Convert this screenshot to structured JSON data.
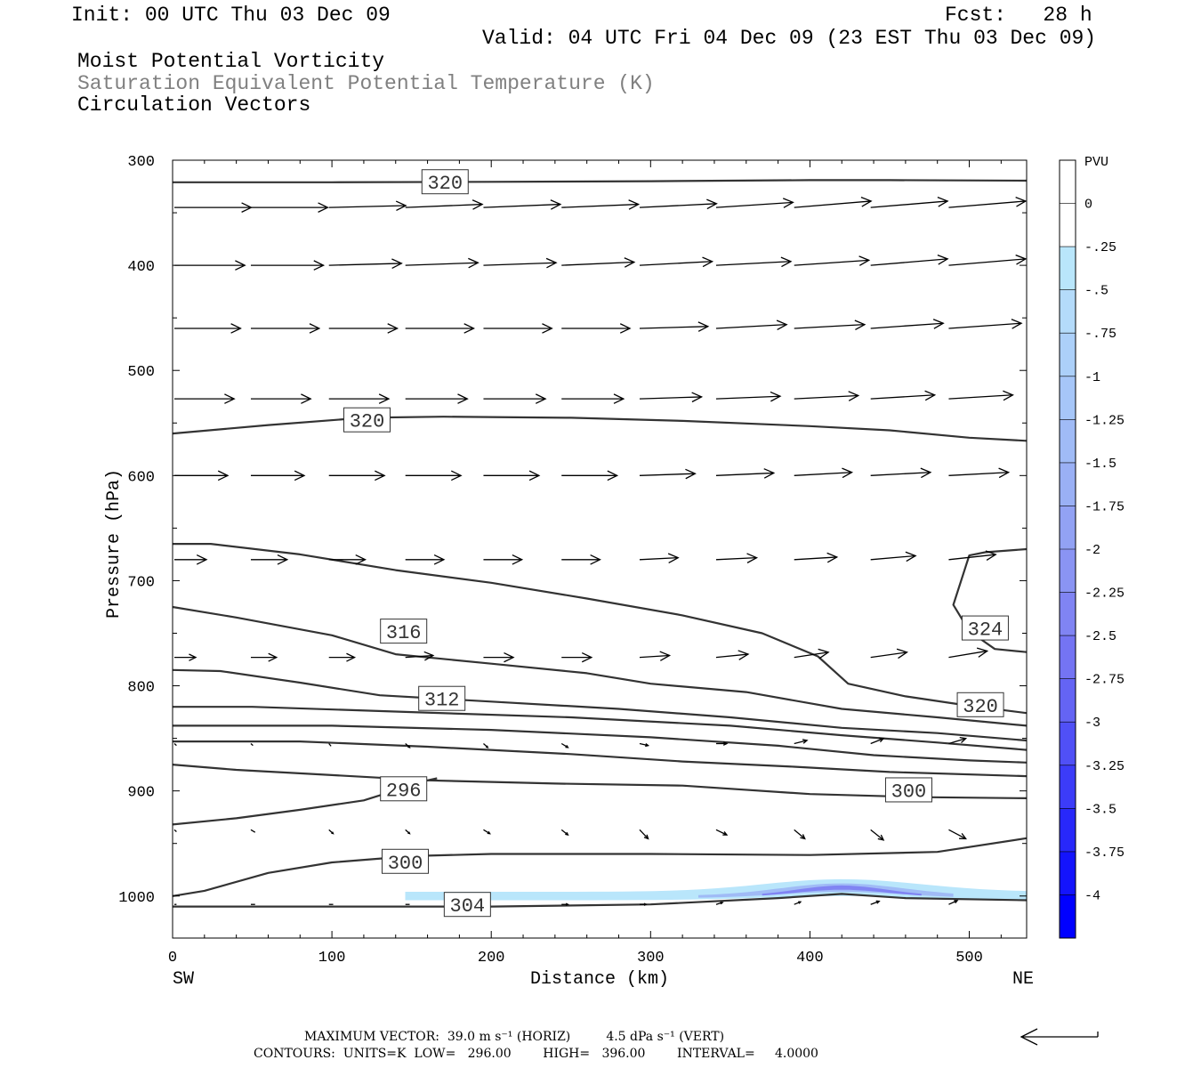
{
  "header": {
    "init": "Init: 00 UTC Thu 03 Dec 09",
    "fcst": "Fcst:   28 h",
    "valid": "Valid: 04 UTC Fri 04 Dec 09 (23 EST Thu 03 Dec 09)",
    "field1": "Moist Potential Vorticity",
    "field2": "Saturation Equivalent Potential Temperature (K)",
    "field3": "Circulation Vectors"
  },
  "footer": {
    "max_vector": "MAXIMUM VECTOR:  39.0 m s⁻¹ (HORIZ)         4.5 dPa s⁻¹ (VERT)",
    "contours": "CONTOURS:  UNITS=K  LOW=   296.00        HIGH=   396.00        INTERVAL=     4.0000"
  },
  "chart_data": {
    "type": "cross-section",
    "xlabel": "Distance (km)",
    "ylabel": "Pressure (hPa)",
    "x_end_labels": [
      "SW",
      "NE"
    ],
    "xlim": [
      0,
      536
    ],
    "ylim": [
      1040,
      300
    ],
    "xticks": [
      0,
      100,
      200,
      300,
      400,
      500
    ],
    "yticks": [
      300,
      400,
      500,
      600,
      700,
      800,
      900,
      1000
    ],
    "colorbar": {
      "unit": "PVU",
      "levels": [
        "0",
        "-.25",
        "-.5",
        "-.75",
        "-1",
        "-1.25",
        "-1.5",
        "-1.75",
        "-2",
        "-2.25",
        "-2.5",
        "-2.75",
        "-3",
        "-3.25",
        "-3.5",
        "-3.75",
        "-4"
      ],
      "colors": [
        "#ffffff",
        "#ffffff",
        "#b9e6fb",
        "#b4dbfa",
        "#acd0f9",
        "#a6c6f8",
        "#a0bbf6",
        "#9ab0f5",
        "#92a2f4",
        "#8a94f3",
        "#8084f3",
        "#7474f3",
        "#6464f4",
        "#5050f6",
        "#3c3cf8",
        "#2828fa",
        "#1414fc",
        "#0000ff"
      ]
    },
    "contours": [
      {
        "label": "320",
        "points": [
          [
            0,
            321
          ],
          [
            100,
            321
          ],
          [
            200,
            320.6
          ],
          [
            300,
            320
          ],
          [
            400,
            319
          ],
          [
            450,
            319
          ],
          [
            536,
            319.5
          ]
        ],
        "label_at": [
          171,
          320.5
        ]
      },
      {
        "label": "320",
        "points": [
          [
            0,
            560
          ],
          [
            60,
            552
          ],
          [
            120,
            545
          ],
          [
            170,
            544
          ],
          [
            250,
            545
          ],
          [
            320,
            548
          ],
          [
            400,
            553
          ],
          [
            450,
            557
          ],
          [
            500,
            564
          ],
          [
            536,
            567
          ]
        ],
        "label_at": [
          122,
          547
        ]
      },
      {
        "label": "320",
        "points": [
          [
            0,
            665
          ],
          [
            24,
            665
          ],
          [
            80,
            675
          ],
          [
            140,
            690
          ],
          [
            200,
            702
          ],
          [
            260,
            717
          ],
          [
            320,
            733
          ],
          [
            370,
            750
          ],
          [
            405,
            772
          ],
          [
            424,
            798
          ],
          [
            460,
            810
          ],
          [
            500,
            819
          ],
          [
            536,
            826
          ]
        ],
        "label_at": [
          507,
          818
        ]
      },
      {
        "label": "316",
        "points": [
          [
            0,
            725
          ],
          [
            40,
            735
          ],
          [
            100,
            752
          ],
          [
            140,
            770
          ],
          [
            200,
            779
          ],
          [
            260,
            788
          ],
          [
            300,
            798
          ],
          [
            360,
            806
          ],
          [
            420,
            822
          ],
          [
            480,
            830
          ],
          [
            536,
            838
          ]
        ],
        "label_at": [
          145,
          748
        ]
      },
      {
        "label": "312",
        "points": [
          [
            0,
            785
          ],
          [
            30,
            786
          ],
          [
            80,
            797
          ],
          [
            130,
            809
          ],
          [
            200,
            815
          ],
          [
            280,
            822
          ],
          [
            350,
            830
          ],
          [
            420,
            840
          ],
          [
            480,
            845
          ],
          [
            536,
            852
          ]
        ],
        "label_at": [
          169,
          812
        ]
      },
      {
        "label": "",
        "points": [
          [
            0,
            820
          ],
          [
            50,
            820
          ],
          [
            150,
            825
          ],
          [
            250,
            830
          ],
          [
            350,
            838
          ],
          [
            420,
            847
          ],
          [
            480,
            854
          ],
          [
            536,
            861
          ]
        ],
        "label_at": null
      },
      {
        "label": "",
        "points": [
          [
            0,
            838
          ],
          [
            100,
            838
          ],
          [
            200,
            842
          ],
          [
            300,
            849
          ],
          [
            380,
            857
          ],
          [
            440,
            866
          ],
          [
            500,
            871
          ],
          [
            536,
            873
          ]
        ],
        "label_at": null
      },
      {
        "label": "",
        "points": [
          [
            0,
            853
          ],
          [
            80,
            853
          ],
          [
            160,
            858
          ],
          [
            250,
            865
          ],
          [
            320,
            872
          ],
          [
            390,
            877
          ],
          [
            450,
            882
          ],
          [
            536,
            886
          ]
        ],
        "label_at": null
      },
      {
        "label": "300",
        "points": [
          [
            0,
            875
          ],
          [
            40,
            880
          ],
          [
            100,
            885
          ],
          [
            160,
            890
          ],
          [
            240,
            893
          ],
          [
            320,
            895
          ],
          [
            400,
            903
          ],
          [
            470,
            906
          ],
          [
            536,
            907
          ]
        ],
        "label_at": [
          462,
          899
        ]
      },
      {
        "label": "296",
        "points": [
          [
            0,
            932
          ],
          [
            40,
            926
          ],
          [
            80,
            918
          ],
          [
            120,
            909
          ],
          [
            160,
            890
          ],
          [
            166,
            888
          ]
        ],
        "label_at": [
          145,
          898
        ]
      },
      {
        "label": "300",
        "points": [
          [
            0,
            1000
          ],
          [
            20,
            995
          ],
          [
            60,
            978
          ],
          [
            100,
            968
          ],
          [
            150,
            962
          ],
          [
            200,
            960
          ],
          [
            300,
            960
          ],
          [
            400,
            961
          ],
          [
            480,
            958
          ],
          [
            536,
            945
          ]
        ],
        "label_at": [
          146,
          967
        ]
      },
      {
        "label": "324",
        "points": [
          [
            536,
            670
          ],
          [
            510,
            673
          ],
          [
            500,
            676
          ],
          [
            490,
            723
          ],
          [
            500,
            748
          ],
          [
            516,
            765
          ],
          [
            536,
            768
          ]
        ],
        "label_at": [
          510,
          745
        ]
      },
      {
        "label": "304",
        "points": [
          [
            0,
            1010
          ],
          [
            100,
            1010
          ],
          [
            200,
            1010
          ],
          [
            300,
            1008
          ],
          [
            380,
            1002
          ],
          [
            420,
            998
          ],
          [
            460,
            1002
          ],
          [
            536,
            1004
          ]
        ],
        "label_at": [
          185,
          1008
        ]
      }
    ],
    "pv_shading": {
      "x_start": 146,
      "x_end": 536,
      "p_top": 985,
      "p_bottom": 1004,
      "min_value_pvu": -1.5
    },
    "vectors": {
      "rows_hpa": [
        345,
        400,
        460,
        527,
        600,
        680,
        773,
        855,
        937,
        1008
      ],
      "cols_km": [
        0,
        48,
        97,
        145,
        194,
        243,
        292,
        340,
        389,
        437,
        486
      ],
      "u": [
        [
          36,
          36,
          36,
          36,
          36,
          36,
          36,
          36,
          36,
          36,
          36
        ],
        [
          33,
          34,
          34,
          34,
          34,
          34,
          34,
          35,
          35,
          36,
          36
        ],
        [
          31,
          32,
          32,
          32,
          32,
          32,
          32,
          33,
          33,
          34,
          34
        ],
        [
          28,
          28,
          28,
          29,
          29,
          29,
          29,
          30,
          30,
          30,
          30
        ],
        [
          25,
          25,
          26,
          26,
          26,
          26,
          26,
          27,
          27,
          28,
          28
        ],
        [
          15,
          17,
          17,
          18,
          18,
          18,
          18,
          19,
          20,
          21,
          22
        ],
        [
          10,
          12,
          12,
          13,
          14,
          14,
          14,
          15,
          16,
          17,
          18
        ],
        [
          1,
          1,
          1,
          2,
          2,
          3,
          4,
          5,
          6,
          6,
          8
        ],
        [
          1,
          2,
          2,
          2,
          3,
          3,
          4,
          5,
          5,
          6,
          8
        ],
        [
          1,
          2,
          2,
          2,
          2,
          3,
          3,
          3,
          3,
          4,
          4
        ]
      ],
      "v": [
        [
          0,
          0,
          0.3,
          0.5,
          0.5,
          0.5,
          0.6,
          0.8,
          1,
          1,
          1
        ],
        [
          0,
          0,
          0.3,
          0.4,
          0.4,
          0.5,
          0.6,
          0.6,
          0.8,
          1,
          1
        ],
        [
          0,
          0,
          0,
          0,
          0,
          0,
          0.3,
          0.6,
          0.6,
          0.8,
          0.8
        ],
        [
          0,
          0,
          0,
          0,
          0,
          0,
          0.3,
          0.4,
          0.5,
          0.6,
          0.6
        ],
        [
          0,
          0,
          0,
          0,
          0,
          0,
          0.3,
          0.4,
          0.5,
          0.5,
          0.5
        ],
        [
          0,
          0,
          0,
          0,
          0,
          0,
          0.3,
          0.3,
          0.4,
          0.6,
          0.8
        ],
        [
          0,
          0,
          0,
          0.3,
          0,
          0,
          0.3,
          0.5,
          0.8,
          0.8,
          1
        ],
        [
          -0.3,
          -0.3,
          -0.4,
          -0.6,
          -0.6,
          -0.6,
          -0.3,
          0,
          0.5,
          0.8,
          0.8
        ],
        [
          -0.3,
          -0.4,
          -0.6,
          -0.6,
          -0.6,
          -0.8,
          -1.4,
          -0.8,
          -1.4,
          -1.6,
          -1.4
        ],
        [
          0,
          0,
          0,
          0,
          0,
          0,
          0,
          0.3,
          0.4,
          0.5,
          0.6
        ]
      ]
    }
  }
}
